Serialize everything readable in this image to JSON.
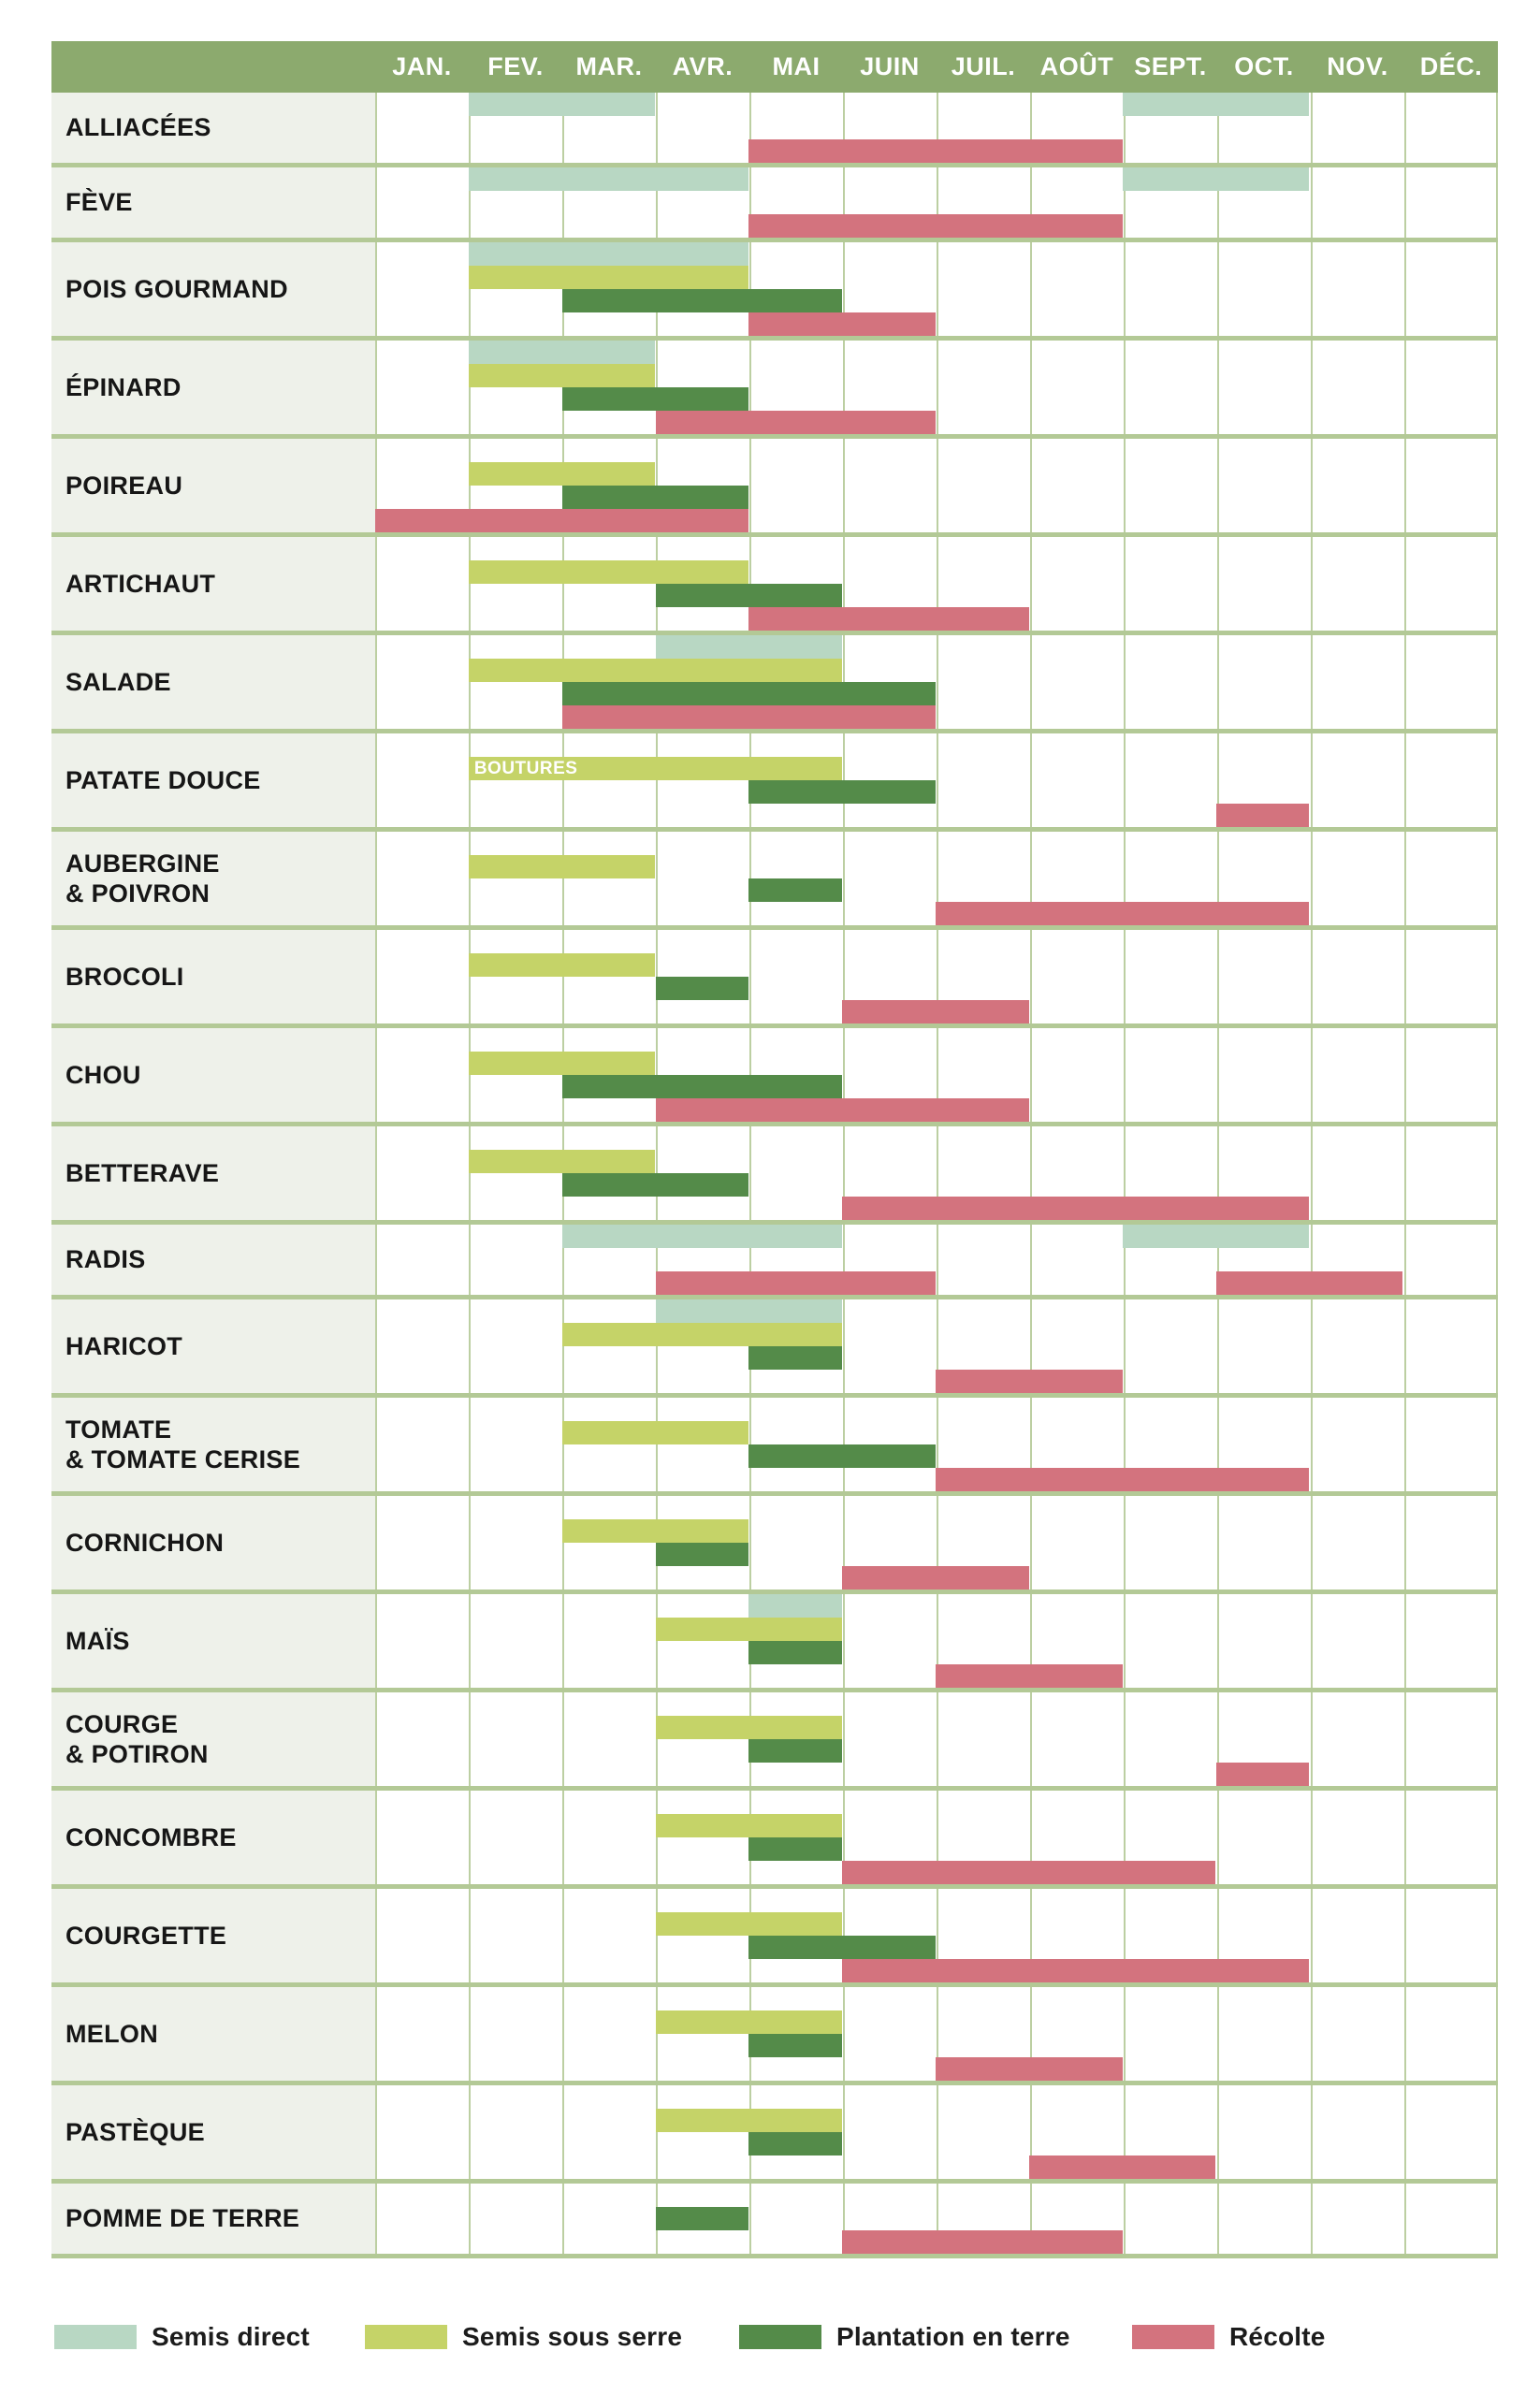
{
  "colors": {
    "band_green": "#8caa6e",
    "label_bg": "#eef1ea",
    "grid_line": "#bccfa2",
    "separator": "#b3c996",
    "page_bg": "#ffffff",
    "label_text": "#161616",
    "month_text": "#ffffff"
  },
  "legend": [
    {
      "type": "semis_direct",
      "x": 58
    },
    {
      "type": "semis_serre",
      "x": 390
    },
    {
      "type": "plantation",
      "x": 790
    },
    {
      "type": "recolte",
      "x": 1210
    }
  ],
  "chart_data": {
    "type": "gantt",
    "unit": "months",
    "x_categories": [
      "JAN.",
      "FEV.",
      "MAR.",
      "AVR.",
      "MAI",
      "JUIN",
      "JUIL.",
      "AOÛT",
      "SEPT.",
      "OCT.",
      "NOV.",
      "DÉC."
    ],
    "x_range": [
      1,
      12
    ],
    "grid": true,
    "legend_position": "bottom",
    "series_types": {
      "semis_direct": {
        "label": "Semis direct",
        "color": "#b8d7c3"
      },
      "semis_serre": {
        "label": "Semis sous serre",
        "color": "#c5d368"
      },
      "plantation": {
        "label": "Plantation en terre",
        "color": "#548b49"
      },
      "recolte": {
        "label": "Récolte",
        "color": "#d3737e"
      }
    },
    "rows": [
      {
        "label": "ALLIACÉES",
        "lanes": 3,
        "bars": [
          {
            "type": "semis_direct",
            "lane": 1,
            "start_month": 2,
            "end_month": 3
          },
          {
            "type": "semis_direct",
            "lane": 1,
            "start_month": 9,
            "end_month": 10
          },
          {
            "type": "recolte",
            "lane": 3,
            "start_month": 5,
            "end_month": 8
          }
        ]
      },
      {
        "label": "FÈVE",
        "lanes": 3,
        "bars": [
          {
            "type": "semis_direct",
            "lane": 1,
            "start_month": 2,
            "end_month": 4
          },
          {
            "type": "semis_direct",
            "lane": 1,
            "start_month": 9,
            "end_month": 10
          },
          {
            "type": "recolte",
            "lane": 3,
            "start_month": 5,
            "end_month": 8
          }
        ]
      },
      {
        "label": "POIS GOURMAND",
        "lanes": 4,
        "bars": [
          {
            "type": "semis_direct",
            "lane": 1,
            "start_month": 2,
            "end_month": 4
          },
          {
            "type": "semis_serre",
            "lane": 2,
            "start_month": 2,
            "end_month": 4
          },
          {
            "type": "plantation",
            "lane": 3,
            "start_month": 3,
            "end_month": 5
          },
          {
            "type": "recolte",
            "lane": 4,
            "start_month": 5,
            "end_month": 6
          }
        ]
      },
      {
        "label": "ÉPINARD",
        "lanes": 4,
        "bars": [
          {
            "type": "semis_direct",
            "lane": 1,
            "start_month": 2,
            "end_month": 3
          },
          {
            "type": "semis_serre",
            "lane": 2,
            "start_month": 2,
            "end_month": 3
          },
          {
            "type": "plantation",
            "lane": 3,
            "start_month": 3,
            "end_month": 4
          },
          {
            "type": "recolte",
            "lane": 4,
            "start_month": 4,
            "end_month": 6
          }
        ]
      },
      {
        "label": "POIREAU",
        "lanes": 4,
        "bars": [
          {
            "type": "semis_serre",
            "lane": 2,
            "start_month": 2,
            "end_month": 3
          },
          {
            "type": "plantation",
            "lane": 3,
            "start_month": 3,
            "end_month": 4
          },
          {
            "type": "recolte",
            "lane": 4,
            "start_month": 1,
            "end_month": 4
          }
        ]
      },
      {
        "label": "ARTICHAUT",
        "lanes": 4,
        "bars": [
          {
            "type": "semis_serre",
            "lane": 2,
            "start_month": 2,
            "end_month": 4
          },
          {
            "type": "plantation",
            "lane": 3,
            "start_month": 4,
            "end_month": 5
          },
          {
            "type": "recolte",
            "lane": 4,
            "start_month": 5,
            "end_month": 7
          }
        ]
      },
      {
        "label": "SALADE",
        "lanes": 4,
        "bars": [
          {
            "type": "semis_direct",
            "lane": 1,
            "start_month": 4,
            "end_month": 5
          },
          {
            "type": "semis_serre",
            "lane": 2,
            "start_month": 2,
            "end_month": 5
          },
          {
            "type": "plantation",
            "lane": 3,
            "start_month": 3,
            "end_month": 6
          },
          {
            "type": "recolte",
            "lane": 4,
            "start_month": 3,
            "end_month": 6
          }
        ]
      },
      {
        "label": "PATATE DOUCE",
        "lanes": 4,
        "bars": [
          {
            "type": "semis_serre",
            "lane": 2,
            "start_month": 2,
            "end_month": 5,
            "bar_label": "BOUTURES"
          },
          {
            "type": "plantation",
            "lane": 3,
            "start_month": 5,
            "end_month": 6
          },
          {
            "type": "recolte",
            "lane": 4,
            "start_month": 10,
            "end_month": 10
          }
        ]
      },
      {
        "label": "AUBERGINE\n& POIVRON",
        "lanes": 4,
        "bars": [
          {
            "type": "semis_serre",
            "lane": 2,
            "start_month": 2,
            "end_month": 3
          },
          {
            "type": "plantation",
            "lane": 3,
            "start_month": 5,
            "end_month": 5
          },
          {
            "type": "recolte",
            "lane": 4,
            "start_month": 7,
            "end_month": 10
          }
        ]
      },
      {
        "label": "BROCOLI",
        "lanes": 4,
        "bars": [
          {
            "type": "semis_serre",
            "lane": 2,
            "start_month": 2,
            "end_month": 3
          },
          {
            "type": "plantation",
            "lane": 3,
            "start_month": 4,
            "end_month": 4
          },
          {
            "type": "recolte",
            "lane": 4,
            "start_month": 6,
            "end_month": 7
          }
        ]
      },
      {
        "label": "CHOU",
        "lanes": 4,
        "bars": [
          {
            "type": "semis_serre",
            "lane": 2,
            "start_month": 2,
            "end_month": 3
          },
          {
            "type": "plantation",
            "lane": 3,
            "start_month": 3,
            "end_month": 5
          },
          {
            "type": "recolte",
            "lane": 4,
            "start_month": 4,
            "end_month": 7
          }
        ]
      },
      {
        "label": "BETTERAVE",
        "lanes": 4,
        "bars": [
          {
            "type": "semis_serre",
            "lane": 2,
            "start_month": 2,
            "end_month": 3
          },
          {
            "type": "plantation",
            "lane": 3,
            "start_month": 3,
            "end_month": 4
          },
          {
            "type": "recolte",
            "lane": 4,
            "start_month": 6,
            "end_month": 10
          }
        ]
      },
      {
        "label": "RADIS",
        "lanes": 3,
        "bars": [
          {
            "type": "semis_direct",
            "lane": 1,
            "start_month": 3,
            "end_month": 5
          },
          {
            "type": "semis_direct",
            "lane": 1,
            "start_month": 9,
            "end_month": 10
          },
          {
            "type": "recolte",
            "lane": 3,
            "start_month": 4,
            "end_month": 6
          },
          {
            "type": "recolte",
            "lane": 3,
            "start_month": 10,
            "end_month": 11
          }
        ]
      },
      {
        "label": "HARICOT",
        "lanes": 4,
        "bars": [
          {
            "type": "semis_direct",
            "lane": 1,
            "start_month": 4,
            "end_month": 5
          },
          {
            "type": "semis_serre",
            "lane": 2,
            "start_month": 3,
            "end_month": 5
          },
          {
            "type": "plantation",
            "lane": 3,
            "start_month": 5,
            "end_month": 5
          },
          {
            "type": "recolte",
            "lane": 4,
            "start_month": 7,
            "end_month": 8
          }
        ]
      },
      {
        "label": "TOMATE\n& TOMATE CERISE",
        "lanes": 4,
        "bars": [
          {
            "type": "semis_serre",
            "lane": 2,
            "start_month": 3,
            "end_month": 4
          },
          {
            "type": "plantation",
            "lane": 3,
            "start_month": 5,
            "end_month": 6
          },
          {
            "type": "recolte",
            "lane": 4,
            "start_month": 7,
            "end_month": 10
          }
        ]
      },
      {
        "label": "CORNICHON",
        "lanes": 4,
        "bars": [
          {
            "type": "semis_serre",
            "lane": 2,
            "start_month": 3,
            "end_month": 4
          },
          {
            "type": "plantation",
            "lane": 3,
            "start_month": 4,
            "end_month": 4
          },
          {
            "type": "recolte",
            "lane": 4,
            "start_month": 6,
            "end_month": 7
          }
        ]
      },
      {
        "label": "MAÏS",
        "lanes": 4,
        "bars": [
          {
            "type": "semis_direct",
            "lane": 1,
            "start_month": 5,
            "end_month": 5
          },
          {
            "type": "semis_serre",
            "lane": 2,
            "start_month": 4,
            "end_month": 5
          },
          {
            "type": "plantation",
            "lane": 3,
            "start_month": 5,
            "end_month": 5
          },
          {
            "type": "recolte",
            "lane": 4,
            "start_month": 7,
            "end_month": 8
          }
        ]
      },
      {
        "label": "COURGE\n& POTIRON",
        "lanes": 4,
        "bars": [
          {
            "type": "semis_serre",
            "lane": 2,
            "start_month": 4,
            "end_month": 5
          },
          {
            "type": "plantation",
            "lane": 3,
            "start_month": 5,
            "end_month": 5
          },
          {
            "type": "recolte",
            "lane": 4,
            "start_month": 10,
            "end_month": 10
          }
        ]
      },
      {
        "label": "CONCOMBRE",
        "lanes": 4,
        "bars": [
          {
            "type": "semis_serre",
            "lane": 2,
            "start_month": 4,
            "end_month": 5
          },
          {
            "type": "plantation",
            "lane": 3,
            "start_month": 5,
            "end_month": 5
          },
          {
            "type": "recolte",
            "lane": 4,
            "start_month": 6,
            "end_month": 9
          }
        ]
      },
      {
        "label": "COURGETTE",
        "lanes": 4,
        "bars": [
          {
            "type": "semis_serre",
            "lane": 2,
            "start_month": 4,
            "end_month": 5
          },
          {
            "type": "plantation",
            "lane": 3,
            "start_month": 5,
            "end_month": 6
          },
          {
            "type": "recolte",
            "lane": 4,
            "start_month": 6,
            "end_month": 10
          }
        ]
      },
      {
        "label": "MELON",
        "lanes": 4,
        "bars": [
          {
            "type": "semis_serre",
            "lane": 2,
            "start_month": 4,
            "end_month": 5
          },
          {
            "type": "plantation",
            "lane": 3,
            "start_month": 5,
            "end_month": 5
          },
          {
            "type": "recolte",
            "lane": 4,
            "start_month": 7,
            "end_month": 8
          }
        ]
      },
      {
        "label": "PASTÈQUE",
        "lanes": 4,
        "bars": [
          {
            "type": "semis_serre",
            "lane": 2,
            "start_month": 4,
            "end_month": 5
          },
          {
            "type": "plantation",
            "lane": 3,
            "start_month": 5,
            "end_month": 5
          },
          {
            "type": "recolte",
            "lane": 4,
            "start_month": 8,
            "end_month": 9
          }
        ]
      },
      {
        "label": "POMME DE TERRE",
        "lanes": 3,
        "bars": [
          {
            "type": "plantation",
            "lane": 2,
            "start_month": 4,
            "end_month": 4
          },
          {
            "type": "recolte",
            "lane": 3,
            "start_month": 6,
            "end_month": 8
          }
        ]
      }
    ]
  }
}
